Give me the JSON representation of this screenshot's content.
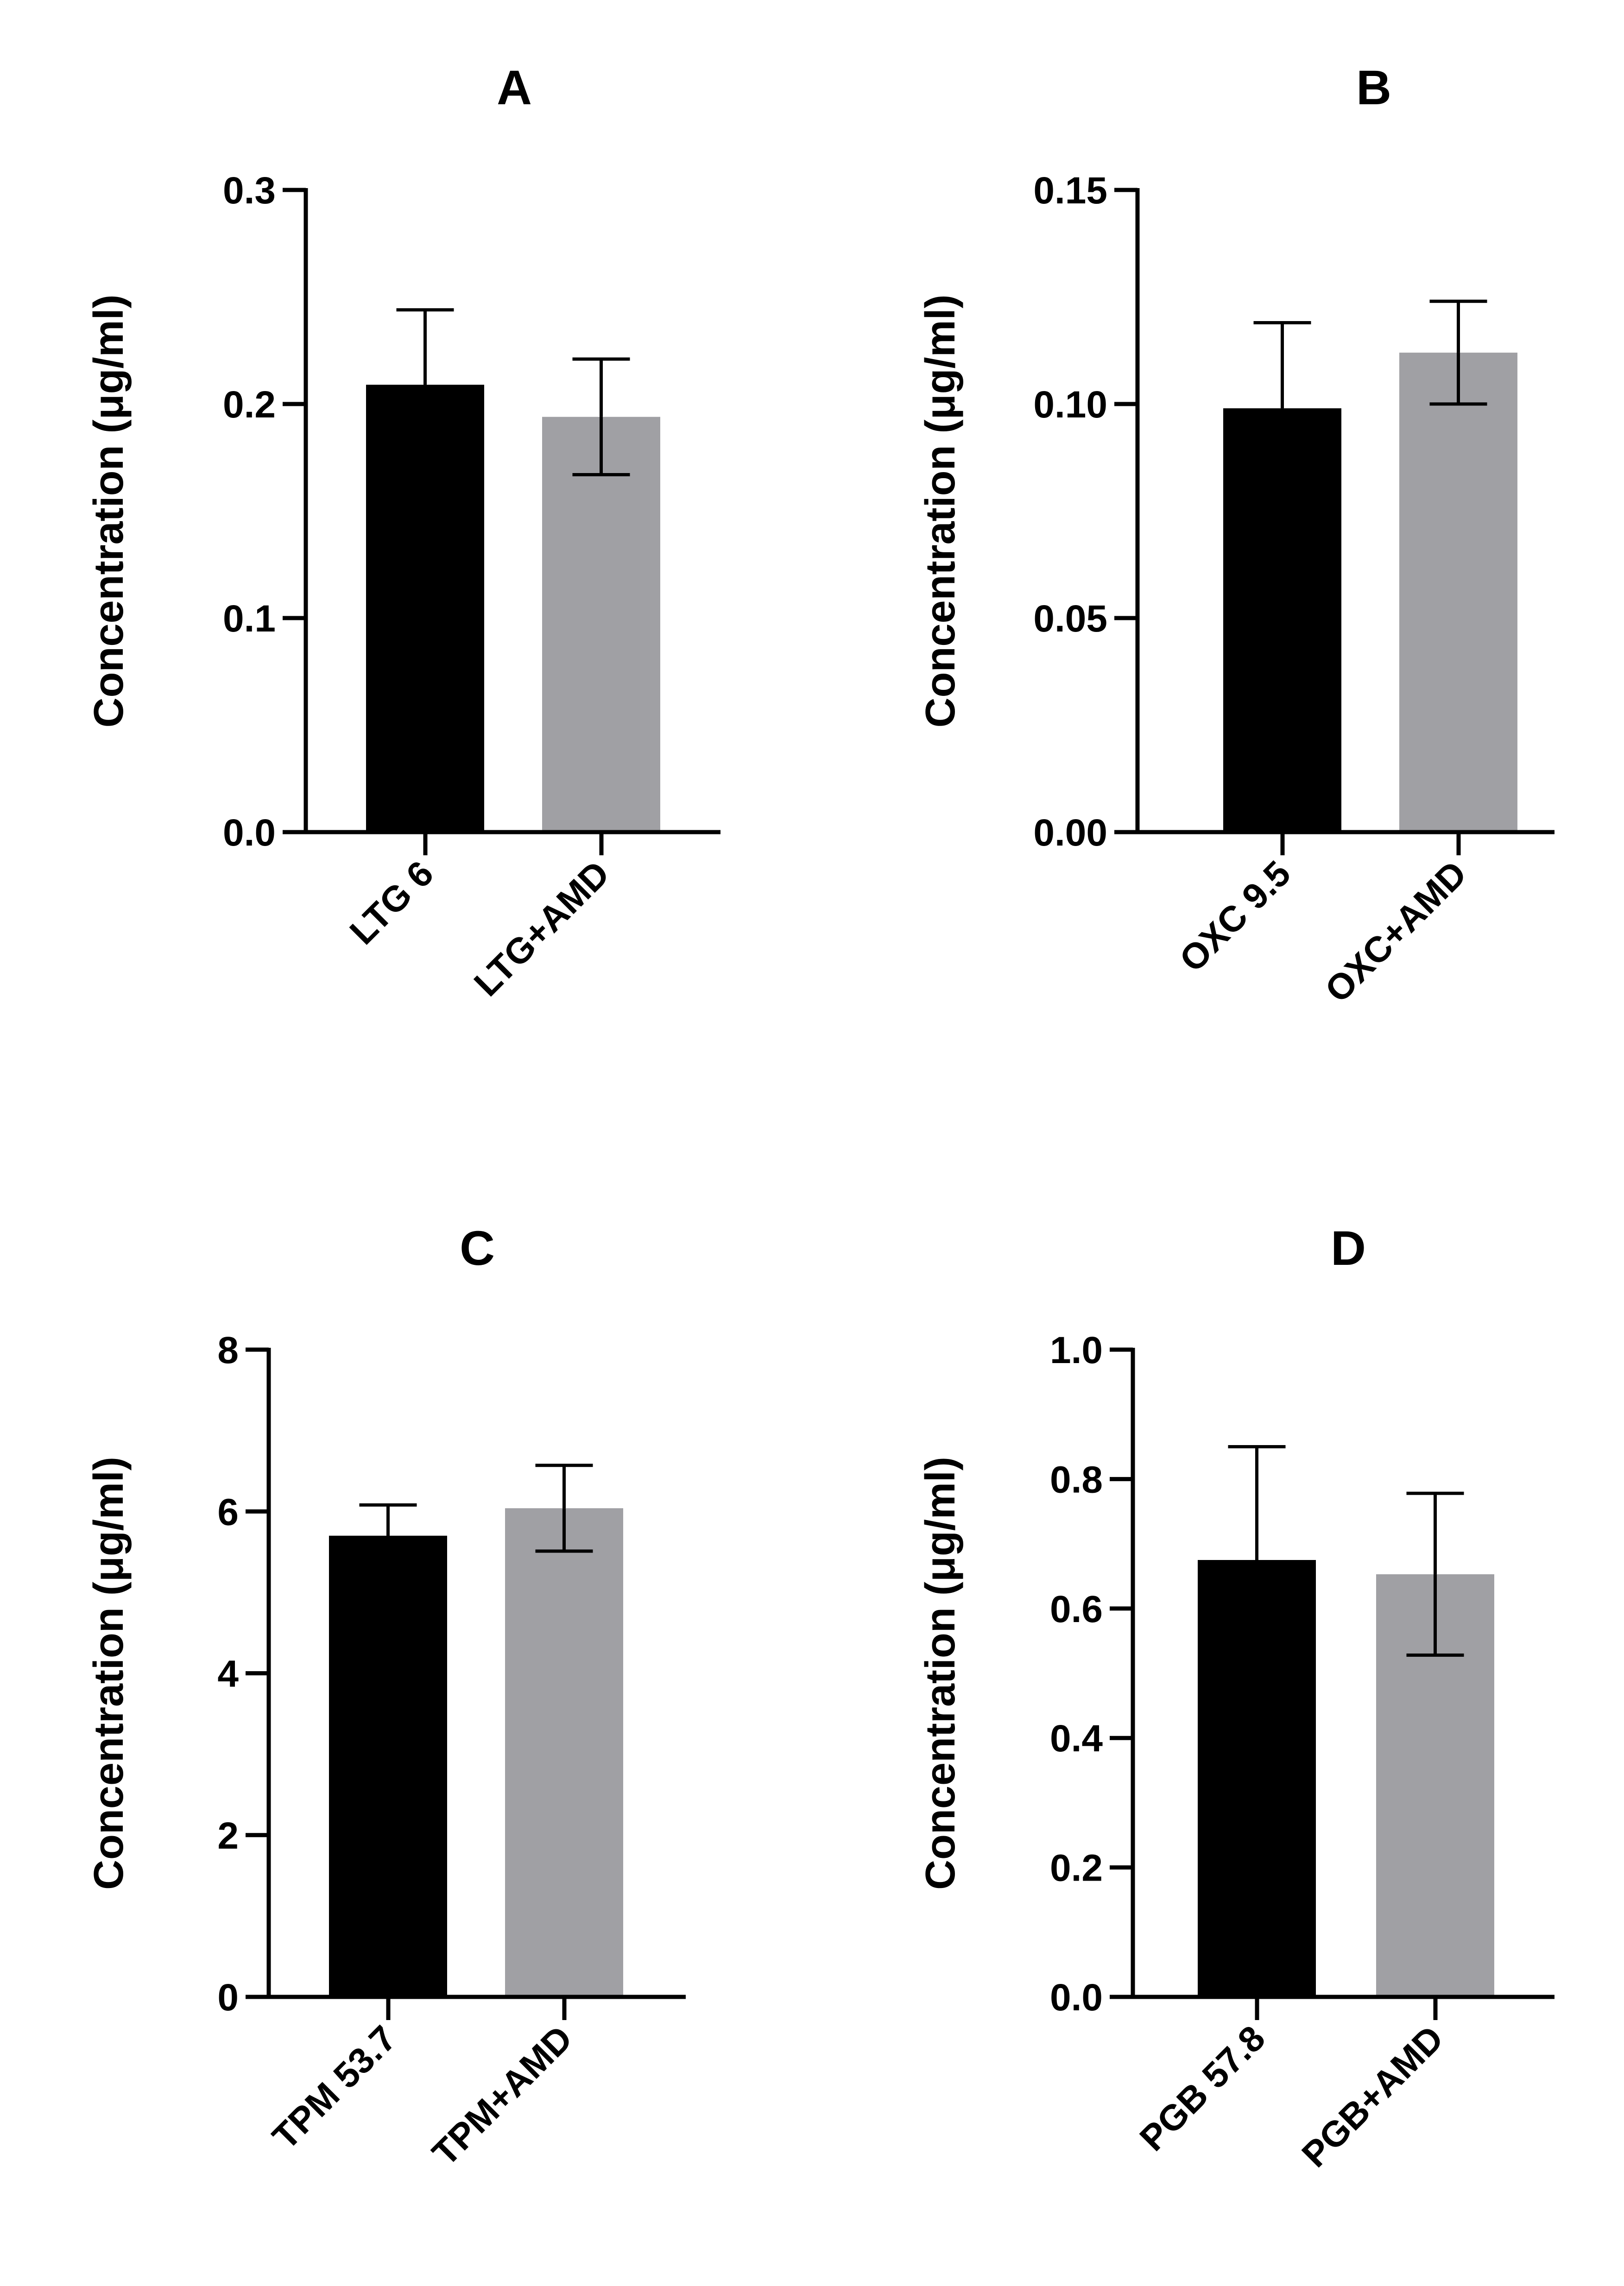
{
  "chart_data": [
    {
      "panel": "A",
      "type": "bar",
      "title": "A",
      "ylabel": "Concentration (μg/ml)",
      "xlabel": "",
      "ylim": [
        0,
        0.3
      ],
      "yticks": [
        0.0,
        0.1,
        0.2,
        0.3
      ],
      "ytick_labels": [
        "0.0",
        "0.1",
        "0.2",
        "0.3"
      ],
      "categories": [
        "LTG 6",
        "LTG+AMD"
      ],
      "values": [
        0.209,
        0.194
      ],
      "errors": [
        0.035,
        0.027
      ],
      "bar_colors": [
        "#000000",
        "#a0a0a4"
      ]
    },
    {
      "panel": "B",
      "type": "bar",
      "title": "B",
      "ylabel": "Concentration (μg/ml)",
      "xlabel": "",
      "ylim": [
        0,
        0.15
      ],
      "yticks": [
        0.0,
        0.05,
        0.1,
        0.15
      ],
      "ytick_labels": [
        "0.00",
        "0.05",
        "0.10",
        "0.15"
      ],
      "categories": [
        "OXC 9.5",
        "OXC+AMD"
      ],
      "values": [
        0.099,
        0.112
      ],
      "errors": [
        0.02,
        0.012
      ],
      "bar_colors": [
        "#000000",
        "#a0a0a4"
      ]
    },
    {
      "panel": "C",
      "type": "bar",
      "title": "C",
      "ylabel": "Concentration (μg/ml)",
      "xlabel": "",
      "ylim": [
        0,
        8
      ],
      "yticks": [
        0,
        2,
        4,
        6,
        8
      ],
      "ytick_labels": [
        "0",
        "2",
        "4",
        "6",
        "8"
      ],
      "categories": [
        "TPM 53.7",
        "TPM+AMD"
      ],
      "values": [
        5.7,
        6.04
      ],
      "errors": [
        0.38,
        0.53
      ],
      "bar_colors": [
        "#000000",
        "#a0a0a4"
      ]
    },
    {
      "panel": "D",
      "type": "bar",
      "title": "D",
      "ylabel": "Concentration (μg/ml)",
      "xlabel": "",
      "ylim": [
        0,
        1.0
      ],
      "yticks": [
        0.0,
        0.2,
        0.4,
        0.6,
        0.8,
        1.0
      ],
      "ytick_labels": [
        "0.0",
        "0.2",
        "0.4",
        "0.6",
        "0.8",
        "1.0"
      ],
      "categories": [
        "PGB 57.8",
        "PGB+AMD"
      ],
      "values": [
        0.675,
        0.653
      ],
      "errors": [
        0.175,
        0.125
      ],
      "bar_colors": [
        "#000000",
        "#a0a0a4"
      ]
    }
  ]
}
